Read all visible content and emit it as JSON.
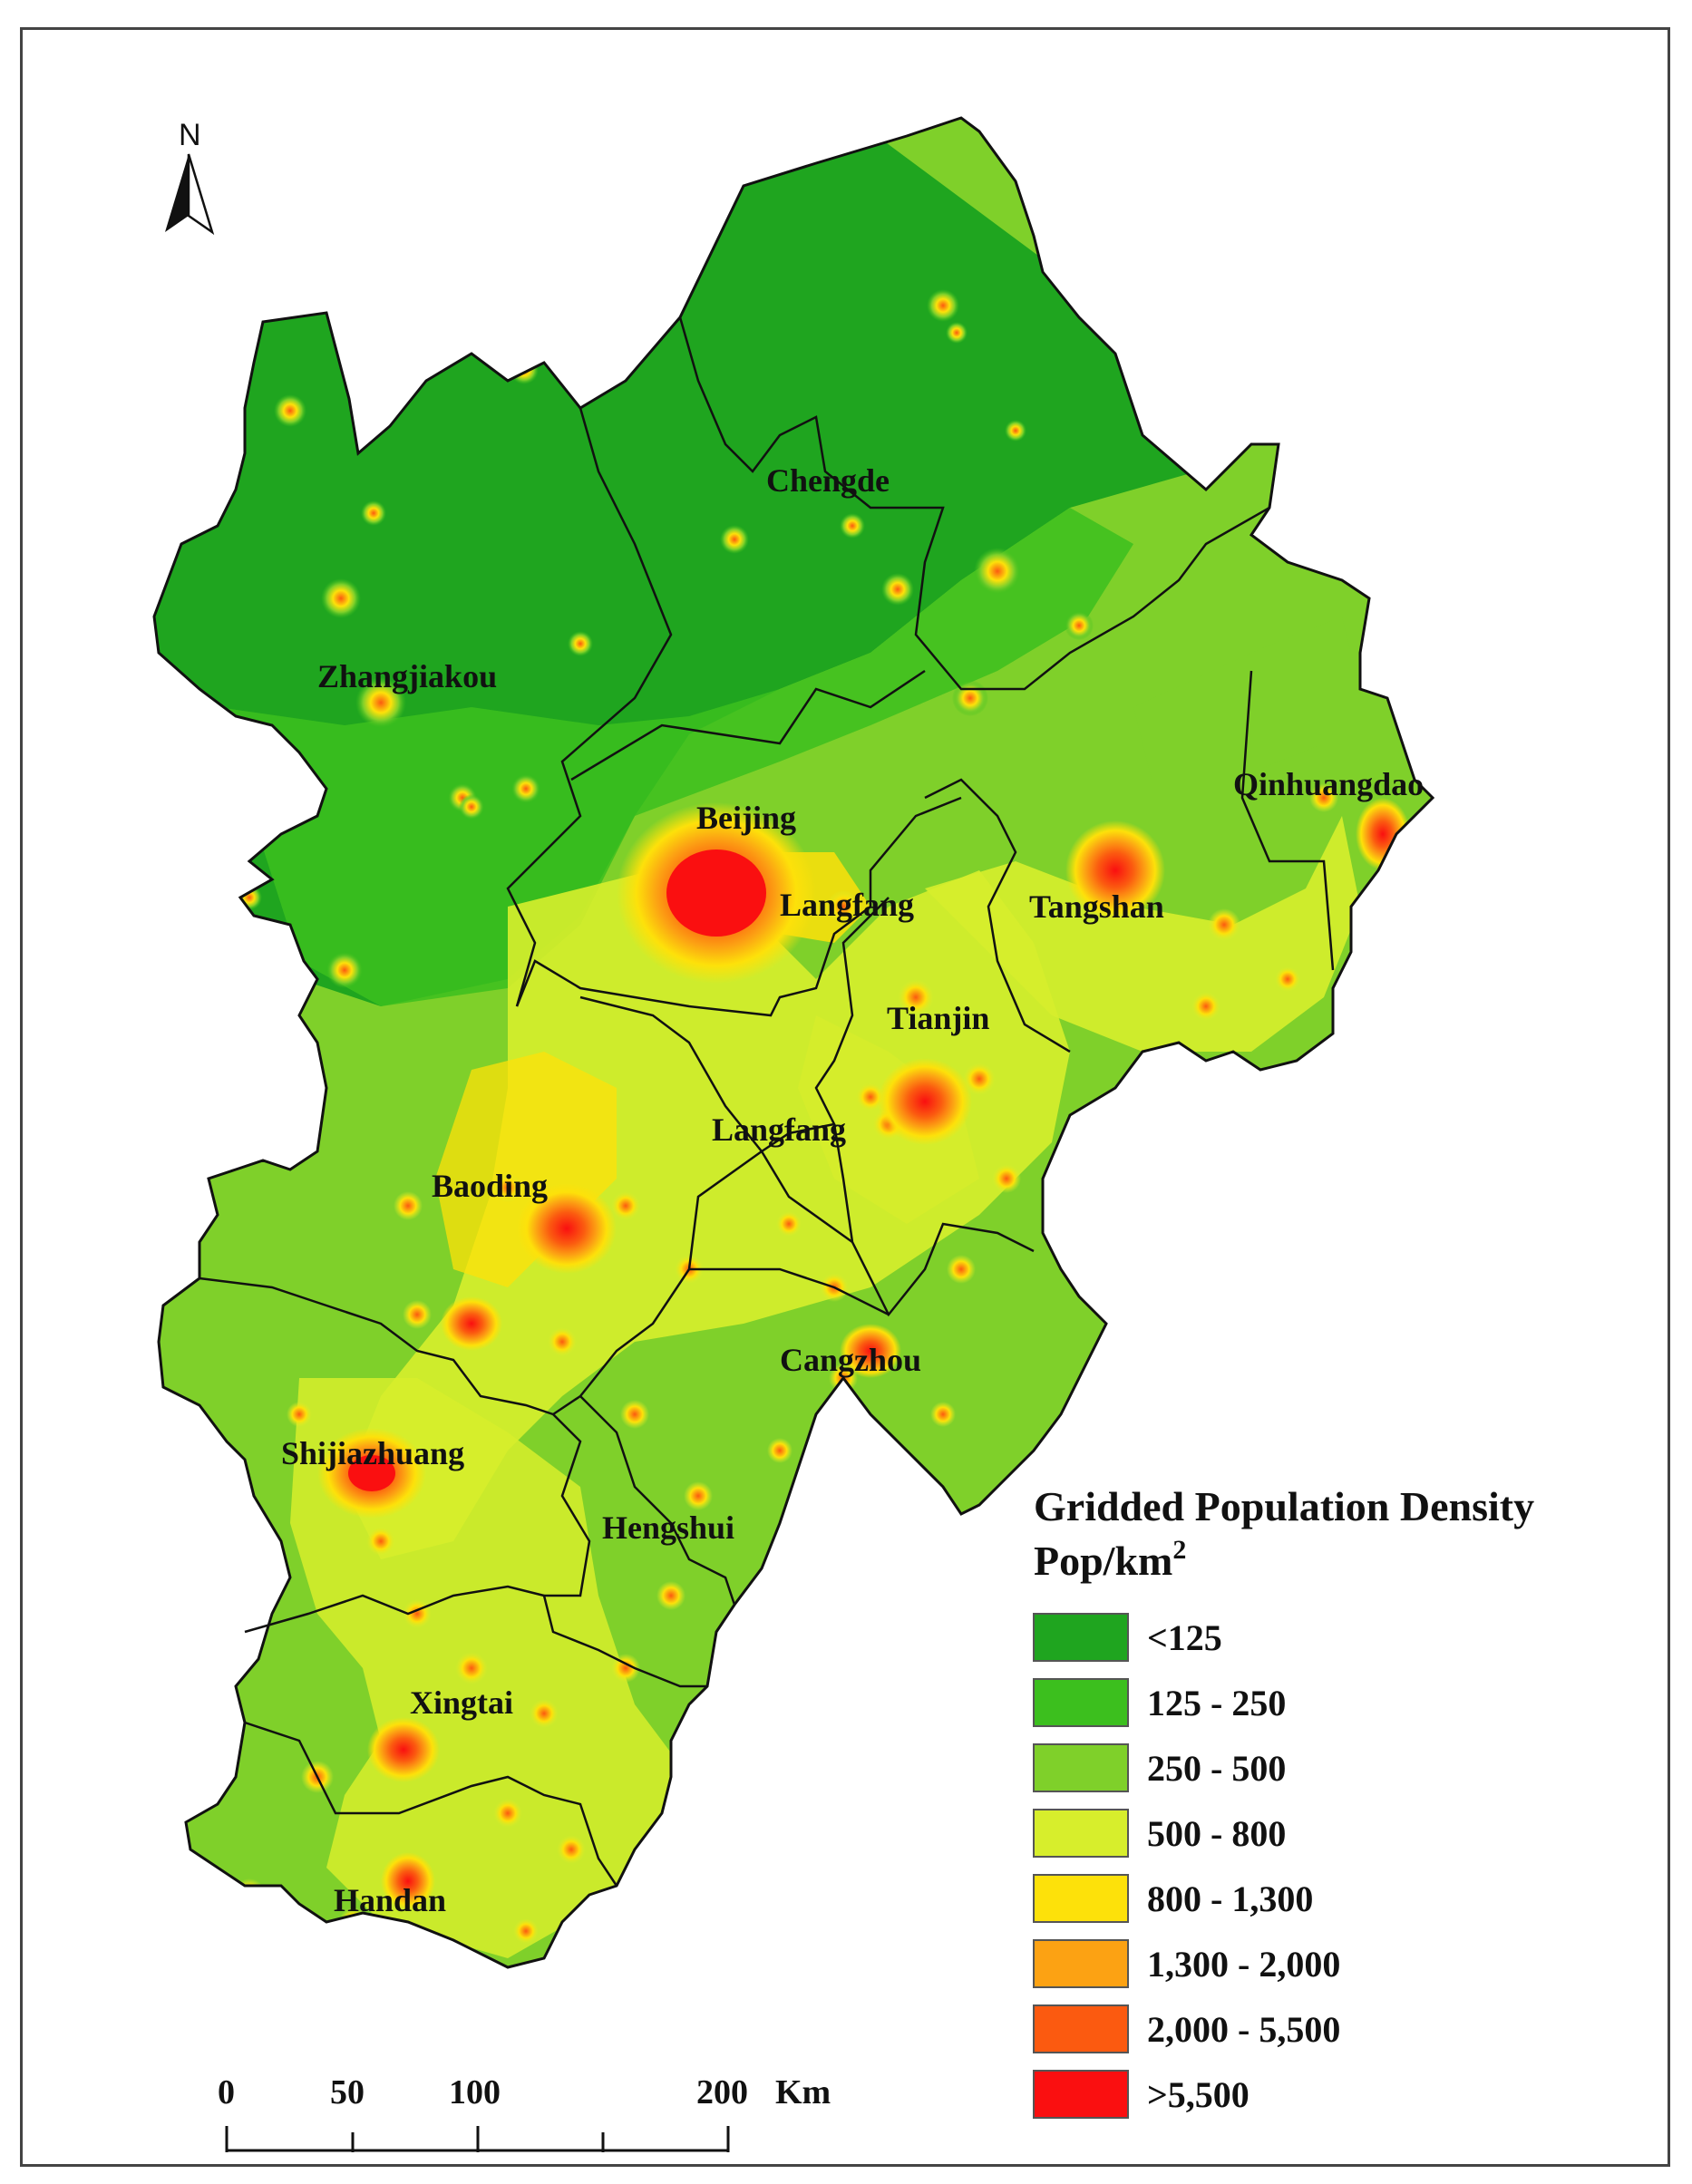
{
  "north_arrow": {
    "label": "N",
    "icon": "north-arrow-icon"
  },
  "regions": [
    {
      "name": "Zhangjiakou"
    },
    {
      "name": "Chengde"
    },
    {
      "name": "Qinhuangdao"
    },
    {
      "name": "Beijing"
    },
    {
      "name": "Langfang"
    },
    {
      "name": "Tangshan"
    },
    {
      "name": "Tianjin"
    },
    {
      "name": "Langfang"
    },
    {
      "name": "Baoding"
    },
    {
      "name": "Cangzhou"
    },
    {
      "name": "Shijiazhuang"
    },
    {
      "name": "Hengshui"
    },
    {
      "name": "Xingtai"
    },
    {
      "name": "Handan"
    }
  ],
  "legend": {
    "title": "Gridded Population Density",
    "unit_base": "Pop/km",
    "unit_sup": "2",
    "classes": [
      {
        "label": "<125",
        "color": "#1fa51f"
      },
      {
        "label": "125 - 250",
        "color": "#3cbf1e"
      },
      {
        "label": "250 - 500",
        "color": "#7fd02a"
      },
      {
        "label": "500 - 800",
        "color": "#d7ee2c"
      },
      {
        "label": "800 - 1,300",
        "color": "#fde10a"
      },
      {
        "label": "1,300 - 2,000",
        "color": "#fca213"
      },
      {
        "label": "2,000 - 5,500",
        "color": "#fb5a10"
      },
      {
        "label": ">5,500",
        "color": "#fa0f10"
      }
    ]
  },
  "scale_bar": {
    "ticks": [
      "0",
      "50",
      "100",
      "200"
    ],
    "unit": "Km"
  }
}
